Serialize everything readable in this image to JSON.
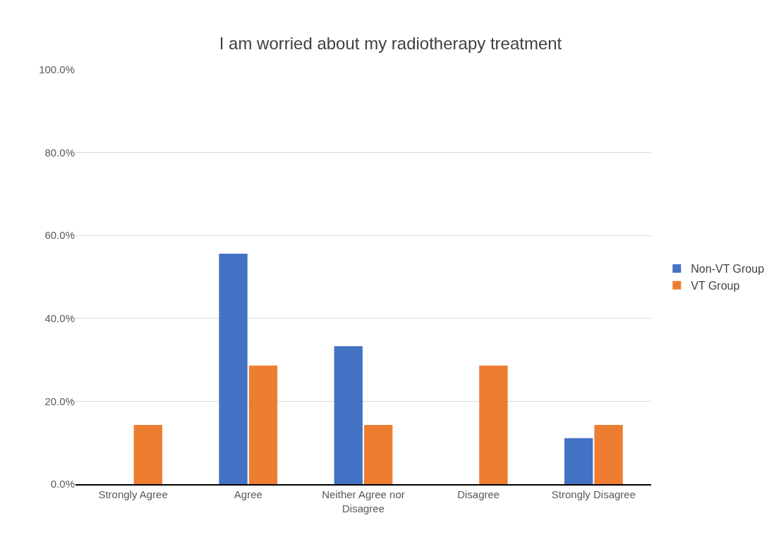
{
  "chart_data": {
    "type": "bar",
    "title": "I am worried about my radiotherapy treatment",
    "categories": [
      "Strongly Agree",
      "Agree",
      "Neither Agree nor Disagree",
      "Disagree",
      "Strongly Disagree"
    ],
    "series": [
      {
        "name": "Non-VT Group",
        "color": "#4472c4",
        "values": [
          0,
          55.6,
          33.3,
          0,
          11.1
        ]
      },
      {
        "name": "VT Group",
        "color": "#ed7d31",
        "values": [
          14.3,
          28.6,
          14.3,
          28.6,
          14.3
        ]
      }
    ],
    "ylim": [
      0,
      100
    ],
    "yticks": [
      {
        "value": 0,
        "label": "0.0%"
      },
      {
        "value": 20,
        "label": "20.0%"
      },
      {
        "value": 40,
        "label": "40.0%"
      },
      {
        "value": 60,
        "label": "60.0%"
      },
      {
        "value": 80,
        "label": "80.0%"
      },
      {
        "value": 100,
        "label": "100.0%"
      }
    ],
    "grid": "y",
    "legend": "right"
  }
}
